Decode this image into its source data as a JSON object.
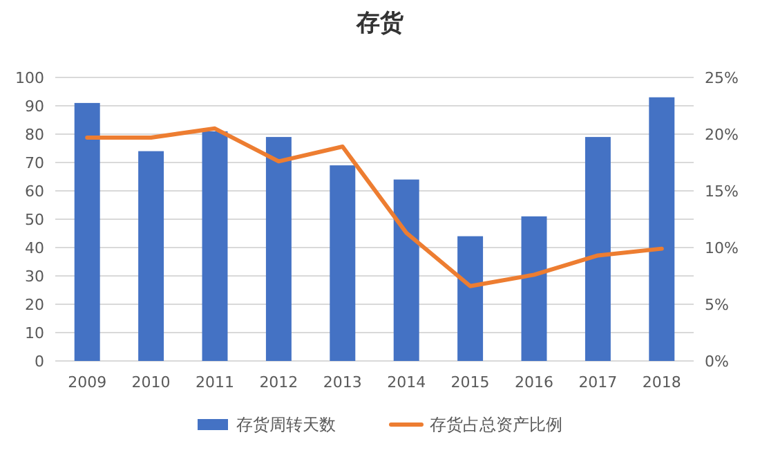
{
  "chart_data": {
    "type": "bar",
    "title": "存货",
    "categories": [
      "2009",
      "2010",
      "2011",
      "2012",
      "2013",
      "2014",
      "2015",
      "2016",
      "2017",
      "2018"
    ],
    "series": [
      {
        "name": "存货周转天数",
        "color": "#4472c4",
        "values": [
          91,
          74,
          81,
          79,
          69,
          64,
          44,
          51,
          79,
          93
        ]
      },
      {
        "name": "存货占总资产比例",
        "type": "line",
        "axis": "y2",
        "color": "#ed7d31",
        "values": [
          19.7,
          19.7,
          20.5,
          17.6,
          18.9,
          11.3,
          6.6,
          7.6,
          9.3,
          9.9
        ]
      }
    ],
    "ylim": [
      0,
      100
    ],
    "yticks": [
      0,
      10,
      20,
      30,
      40,
      50,
      60,
      70,
      80,
      90,
      100
    ],
    "y2lim": [
      0,
      25
    ],
    "y2ticks": [
      {
        "value": 0,
        "label": "0%"
      },
      {
        "value": 5,
        "label": "5%"
      },
      {
        "value": 10,
        "label": "10%"
      },
      {
        "value": 15,
        "label": "15%"
      },
      {
        "value": 20,
        "label": "20%"
      },
      {
        "value": 25,
        "label": "25%"
      }
    ],
    "grid": "y",
    "legend": "bottom",
    "marker": "none"
  }
}
